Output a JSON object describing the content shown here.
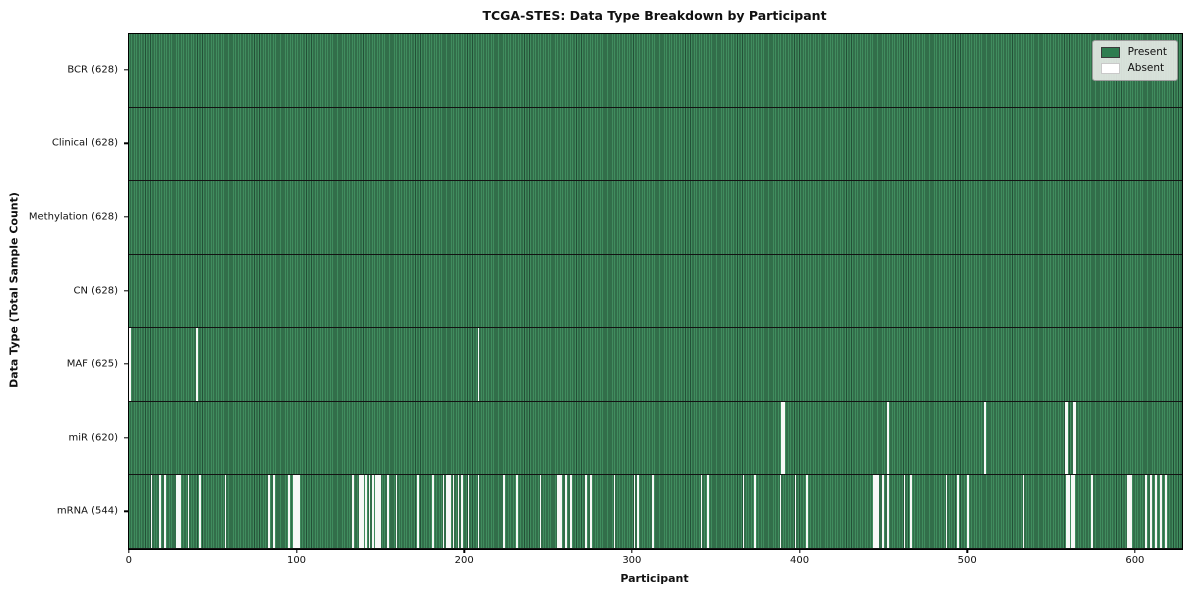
{
  "chart_data": {
    "type": "heatmap",
    "title": "TCGA-STES: Data Type Breakdown by Participant",
    "xlabel": "Participant",
    "ylabel": "Data Type (Total Sample Count)",
    "n_participants": 628,
    "x_ticks": [
      0,
      100,
      200,
      300,
      400,
      500,
      600
    ],
    "legend": {
      "present": "Present",
      "absent": "Absent",
      "position": "upper right"
    },
    "colors": {
      "present": "#2e8b57",
      "present_stripe_light": "#408c5e",
      "present_stripe_dark": "#235137",
      "absent": "#ffffff",
      "row_divider": "#131313",
      "legend_bg": "#e8ebe8"
    },
    "grid": false,
    "rows": [
      {
        "name": "BCR",
        "label": "BCR (628)",
        "present_count": 628,
        "absent_participants": []
      },
      {
        "name": "Clinical",
        "label": "Clinical (628)",
        "present_count": 628,
        "absent_participants": []
      },
      {
        "name": "Methylation",
        "label": "Methylation (628)",
        "present_count": 628,
        "absent_participants": []
      },
      {
        "name": "CN",
        "label": "CN (628)",
        "present_count": 628,
        "absent_participants": []
      },
      {
        "name": "MAF",
        "label": "MAF (625)",
        "present_count": 625,
        "absent_participants": [
          0,
          40,
          208
        ]
      },
      {
        "name": "miR",
        "label": "miR (620)",
        "present_count": 620,
        "absent_participants": [
          389,
          390,
          452,
          510,
          558,
          559,
          563,
          564
        ]
      },
      {
        "name": "mRNA",
        "label": "mRNA (544)",
        "present_count": 544,
        "absent_participants": [
          13,
          18,
          21,
          28,
          29,
          30,
          35,
          42,
          57,
          83,
          86,
          95,
          98,
          99,
          100,
          101,
          133,
          137,
          138,
          139,
          141,
          143,
          145,
          147,
          148,
          149,
          154,
          159,
          172,
          181,
          187,
          189,
          190,
          191,
          193,
          196,
          198,
          202,
          208,
          223,
          231,
          245,
          255,
          256,
          257,
          260,
          263,
          272,
          275,
          289,
          301,
          303,
          312,
          341,
          345,
          366,
          373,
          388,
          397,
          404,
          444,
          445,
          446,
          449,
          452,
          462,
          466,
          487,
          494,
          500,
          533,
          559,
          560,
          562,
          563,
          574,
          595,
          596,
          597,
          606,
          609,
          612,
          615,
          618
        ]
      }
    ]
  }
}
